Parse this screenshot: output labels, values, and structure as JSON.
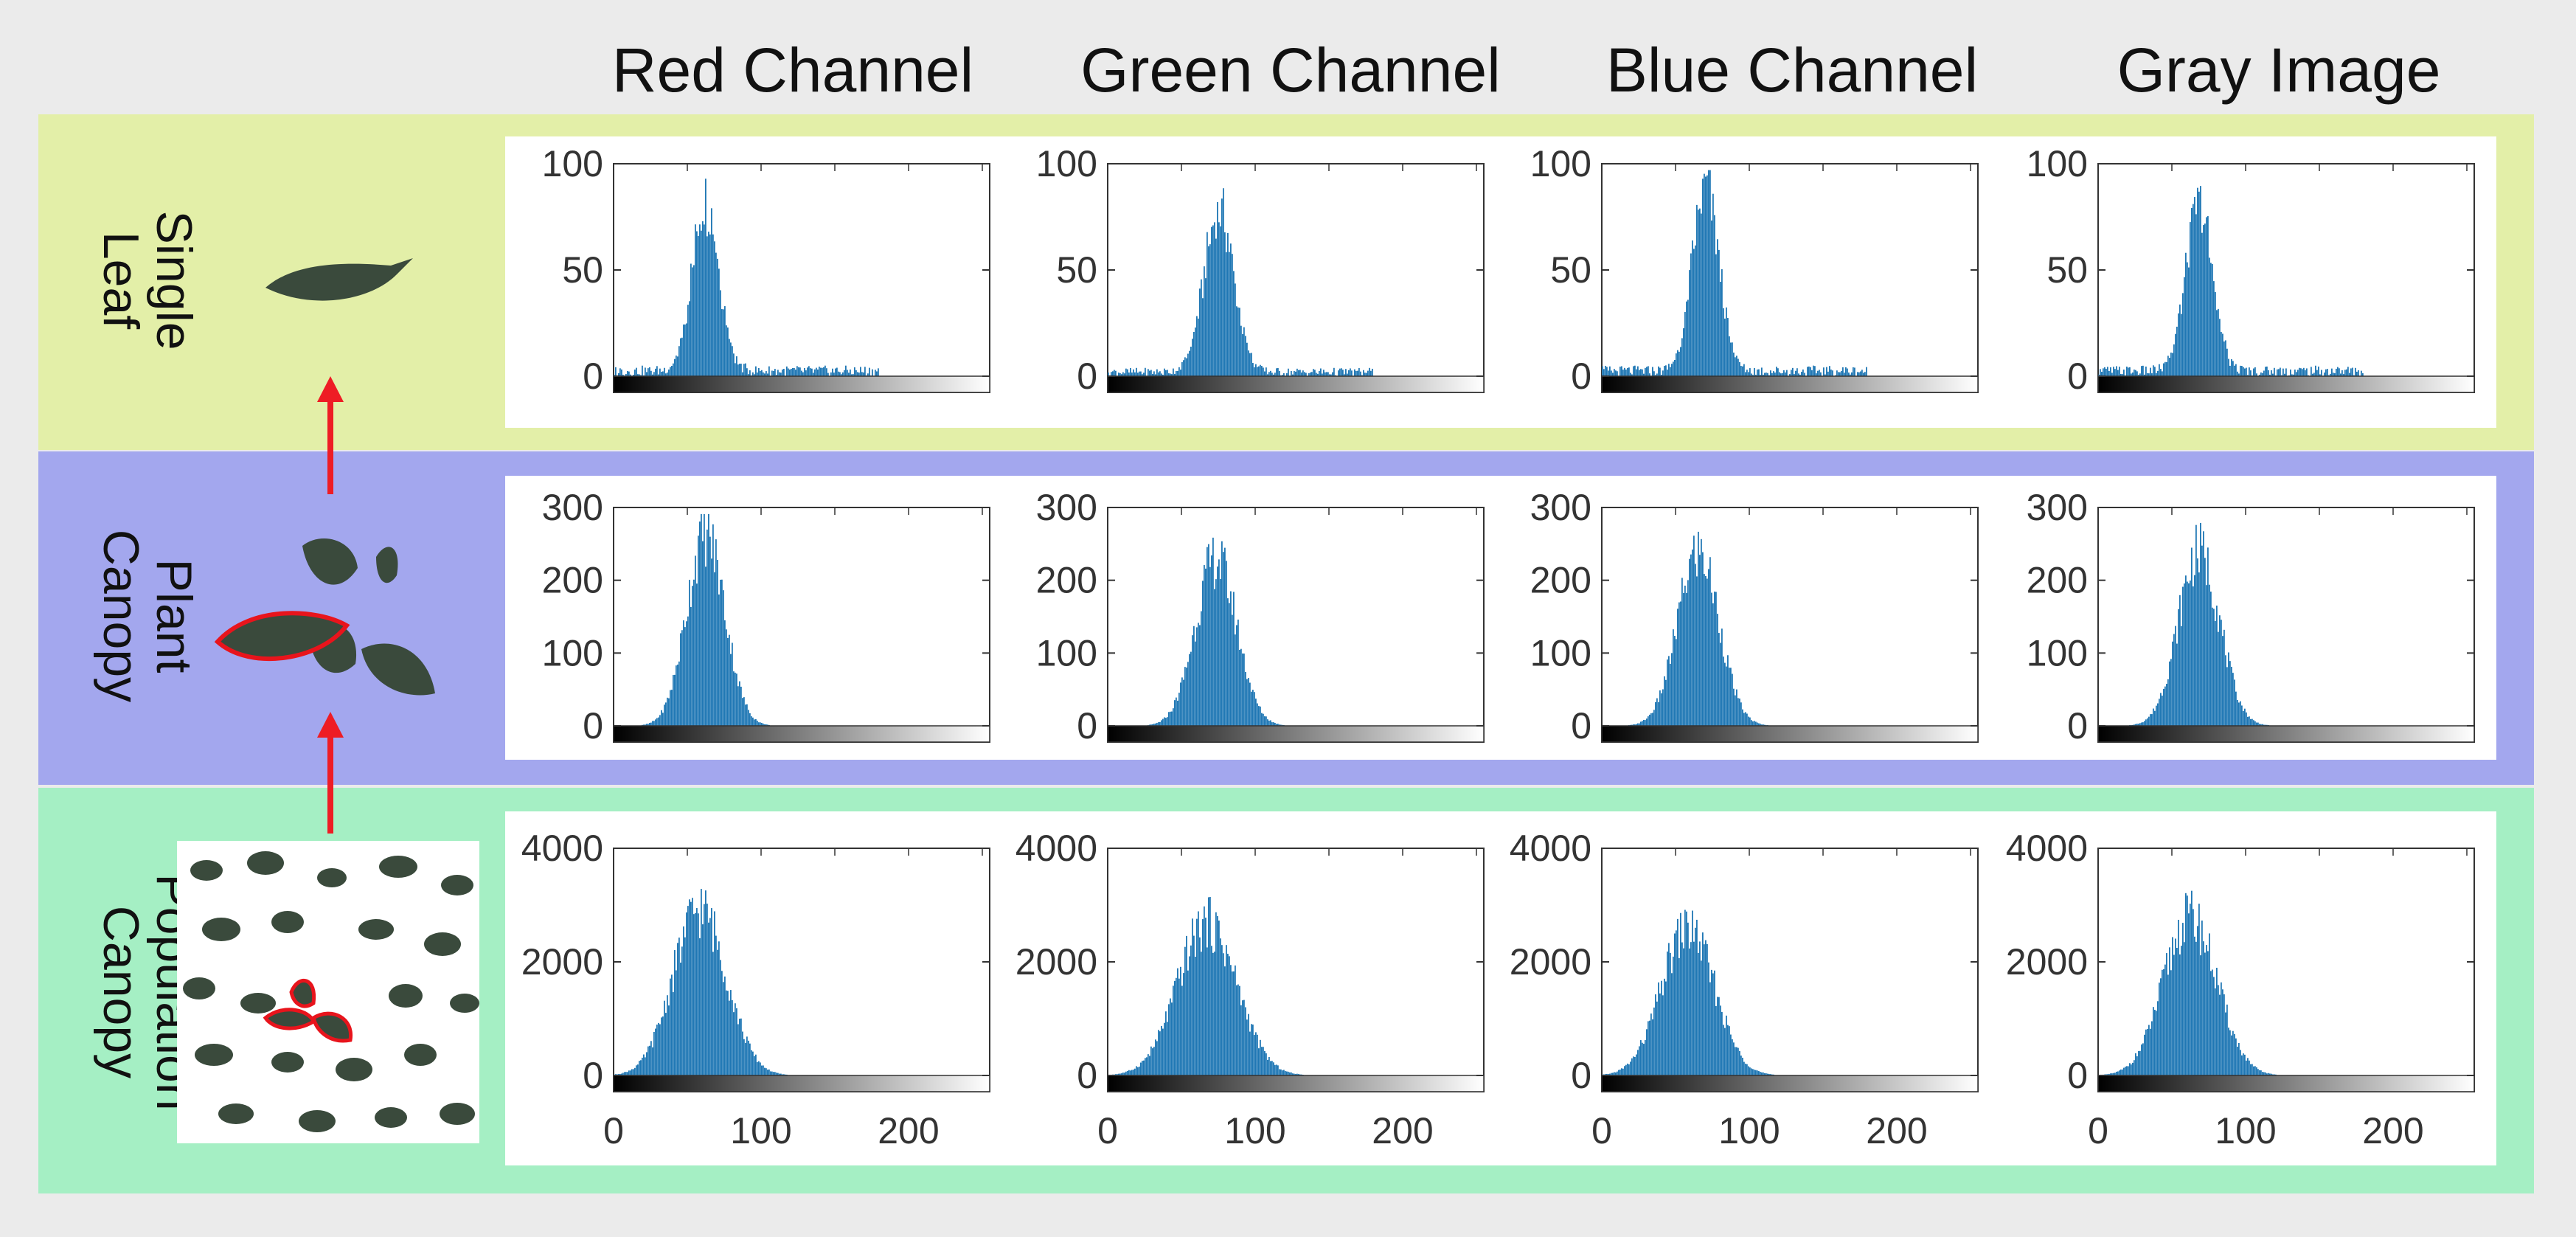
{
  "columns": [
    "Red Channel",
    "Green Channel",
    "Blue Channel",
    "Gray Image"
  ],
  "rows": [
    {
      "label_line1": "Single",
      "label_line2": "Leaf",
      "color": "#e3efa8"
    },
    {
      "label_line1": "Plant",
      "label_line2": "Canopy",
      "color": "#a3a7ee"
    },
    {
      "label_line1": "Population",
      "label_line2": "Canopy",
      "color": "#a5efc4"
    }
  ],
  "colors": {
    "bars": "#1f77b4",
    "arrow": "#ee1c24",
    "leaf": "#3a4a3c",
    "outline": "#e8141c",
    "background": "#ebebeb"
  },
  "chart_data": [
    {
      "type": "bar",
      "row": "Single Leaf",
      "column": "Red Channel",
      "ylim": [
        0,
        100
      ],
      "xlim": [
        0,
        255
      ],
      "yticks": [
        0,
        50,
        100
      ],
      "xticks": [],
      "peak_x": 62,
      "peak_y": 82,
      "spread": 9,
      "baseline": 5
    },
    {
      "type": "bar",
      "row": "Single Leaf",
      "column": "Green Channel",
      "ylim": [
        0,
        100
      ],
      "xlim": [
        0,
        255
      ],
      "yticks": [
        0,
        50,
        100
      ],
      "xticks": [],
      "peak_x": 75,
      "peak_y": 78,
      "spread": 10,
      "baseline": 4
    },
    {
      "type": "bar",
      "row": "Single Leaf",
      "column": "Blue Channel",
      "ylim": [
        0,
        100
      ],
      "xlim": [
        0,
        255
      ],
      "yticks": [
        0,
        50,
        100
      ],
      "xticks": [],
      "peak_x": 70,
      "peak_y": 88,
      "spread": 9,
      "baseline": 5
    },
    {
      "type": "bar",
      "row": "Single Leaf",
      "column": "Gray Image",
      "ylim": [
        0,
        100
      ],
      "xlim": [
        0,
        255
      ],
      "yticks": [
        0,
        50,
        100
      ],
      "xticks": [],
      "peak_x": 68,
      "peak_y": 80,
      "spread": 9,
      "baseline": 5
    },
    {
      "type": "bar",
      "row": "Plant Canopy",
      "column": "Red Channel",
      "ylim": [
        0,
        300
      ],
      "xlim": [
        0,
        255
      ],
      "yticks": [
        0,
        100,
        200,
        300
      ],
      "xticks": [],
      "peak_x": 62,
      "peak_y": 270,
      "spread": 13,
      "baseline": 0
    },
    {
      "type": "bar",
      "row": "Plant Canopy",
      "column": "Green Channel",
      "ylim": [
        0,
        300
      ],
      "xlim": [
        0,
        255
      ],
      "yticks": [
        0,
        100,
        200,
        300
      ],
      "xticks": [],
      "peak_x": 73,
      "peak_y": 235,
      "spread": 14,
      "baseline": 0
    },
    {
      "type": "bar",
      "row": "Plant Canopy",
      "column": "Blue Channel",
      "ylim": [
        0,
        300
      ],
      "xlim": [
        0,
        255
      ],
      "yticks": [
        0,
        100,
        200,
        300
      ],
      "xticks": [],
      "peak_x": 65,
      "peak_y": 245,
      "spread": 14,
      "baseline": 0
    },
    {
      "type": "bar",
      "row": "Plant Canopy",
      "column": "Gray Image",
      "ylim": [
        0,
        300
      ],
      "xlim": [
        0,
        255
      ],
      "yticks": [
        0,
        100,
        200,
        300
      ],
      "xticks": [],
      "peak_x": 68,
      "peak_y": 245,
      "spread": 14,
      "baseline": 0
    },
    {
      "type": "bar",
      "row": "Population Canopy",
      "column": "Red Channel",
      "ylim": [
        0,
        4000
      ],
      "xlim": [
        0,
        255
      ],
      "yticks": [
        0,
        2000,
        4000
      ],
      "xticks": [
        0,
        100,
        200
      ],
      "peak_x": 58,
      "peak_y": 3000,
      "spread": 18,
      "baseline": 0
    },
    {
      "type": "bar",
      "row": "Population Canopy",
      "column": "Green Channel",
      "ylim": [
        0,
        4000
      ],
      "xlim": [
        0,
        255
      ],
      "yticks": [
        0,
        2000,
        4000
      ],
      "xticks": [
        0,
        100,
        200
      ],
      "peak_x": 67,
      "peak_y": 2750,
      "spread": 20,
      "baseline": 0
    },
    {
      "type": "bar",
      "row": "Population Canopy",
      "column": "Blue Channel",
      "ylim": [
        0,
        4000
      ],
      "xlim": [
        0,
        255
      ],
      "yticks": [
        0,
        2000,
        4000
      ],
      "xticks": [
        0,
        100,
        200
      ],
      "peak_x": 58,
      "peak_y": 2650,
      "spread": 18,
      "baseline": 0
    },
    {
      "type": "bar",
      "row": "Population Canopy",
      "column": "Gray Image",
      "ylim": [
        0,
        4000
      ],
      "xlim": [
        0,
        255
      ],
      "yticks": [
        0,
        2000,
        4000
      ],
      "xticks": [
        0,
        100,
        200
      ],
      "peak_x": 62,
      "peak_y": 2850,
      "spread": 18,
      "baseline": 0
    }
  ]
}
